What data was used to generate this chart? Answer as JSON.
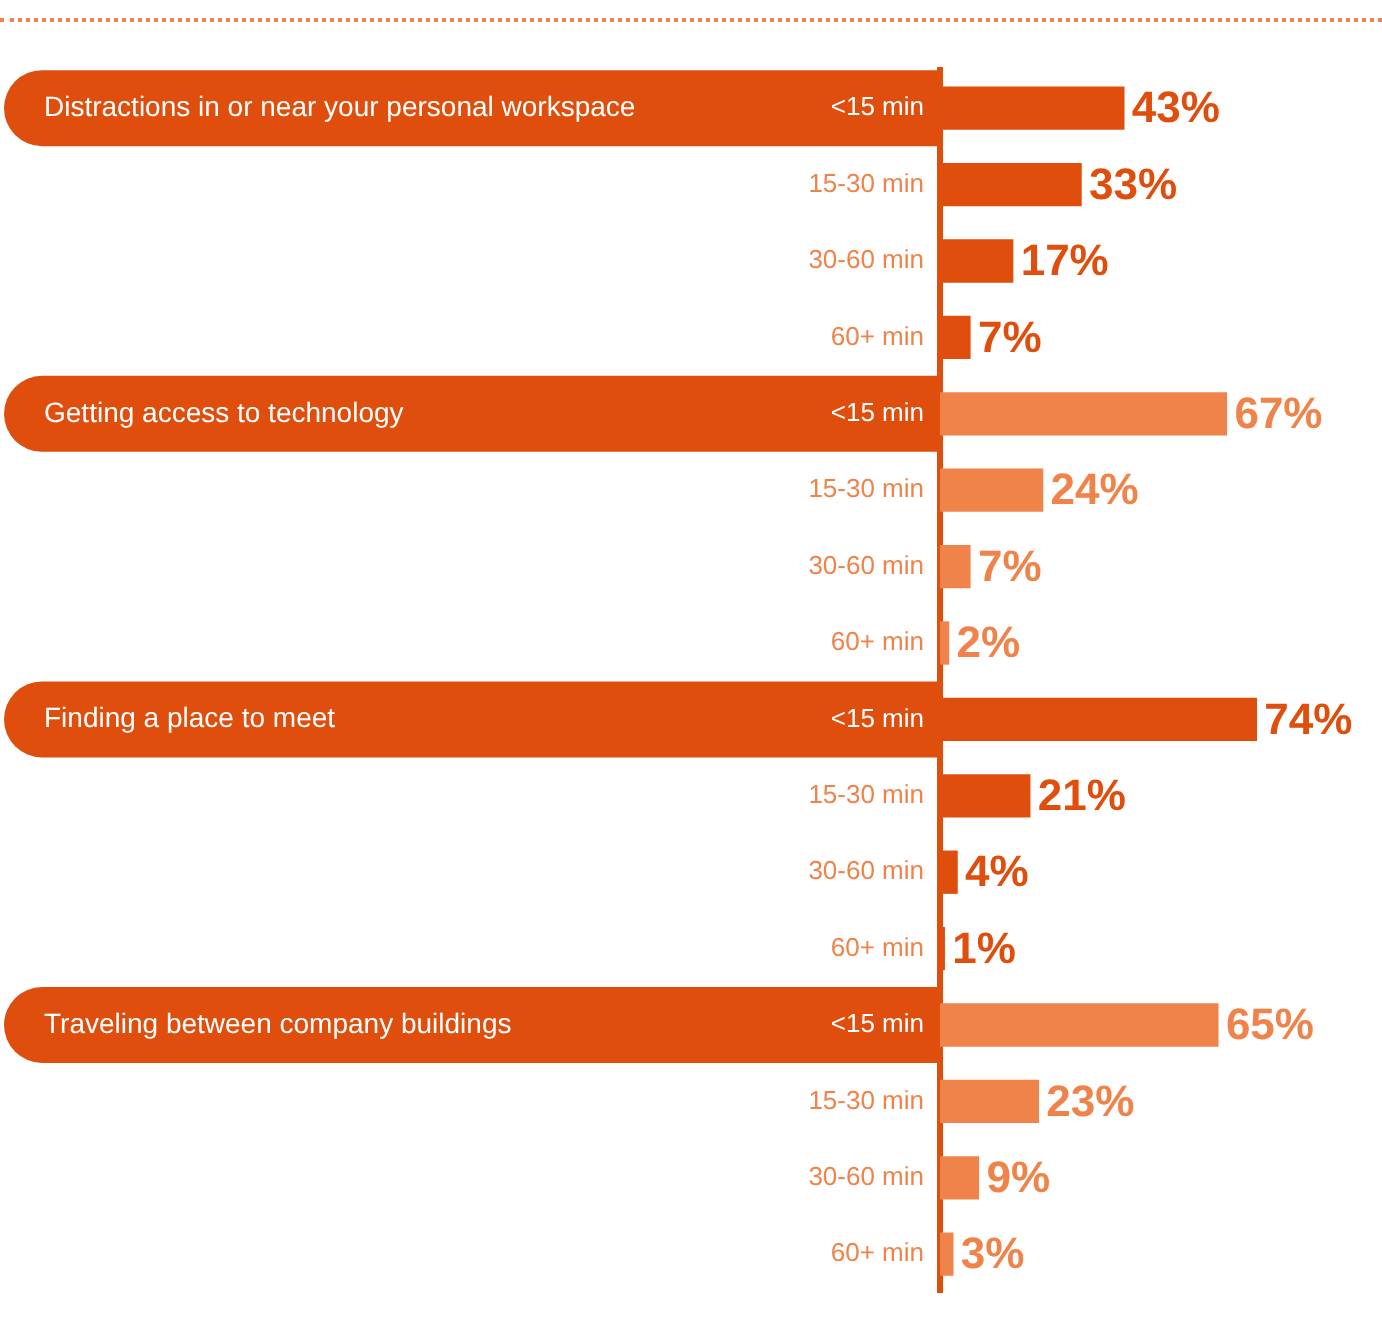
{
  "chart_data": {
    "type": "bar",
    "orientation": "horizontal",
    "categories": [
      "<15 min",
      "15-30 min",
      "30-60 min",
      "60+ min",
      "<15 min",
      "15-30 min",
      "30-60 min",
      "60+ min",
      "<15 min",
      "15-30 min",
      "30-60 min",
      "60+ min",
      "<15 min",
      "15-30 min",
      "30-60 min",
      "60+ min"
    ],
    "values": [
      43,
      33,
      17,
      7,
      67,
      24,
      7,
      2,
      74,
      21,
      4,
      1,
      65,
      23,
      9,
      3
    ],
    "colors": [
      "#df4e0c",
      "#df4e0c",
      "#df4e0c",
      "#df4e0c",
      "#f0834a",
      "#f0834a",
      "#f0834a",
      "#f0834a",
      "#df4e0c",
      "#df4e0c",
      "#df4e0c",
      "#df4e0c",
      "#f0834a",
      "#f0834a",
      "#f0834a",
      "#f0834a"
    ],
    "value_labels": [
      "43%",
      "33%",
      "17%",
      "7%",
      "67%",
      "24%",
      "7%",
      "2%",
      "74%",
      "21%",
      "4%",
      "1%",
      "65%",
      "23%",
      "9%",
      "3%"
    ],
    "tick_labels": "y",
    "grid": false,
    "legend": false,
    "annotations": [
      "Distractions in or near your personal workspace",
      "Getting access to technology",
      "Finding a place to meet",
      "Traveling between company buildings"
    ]
  }
}
